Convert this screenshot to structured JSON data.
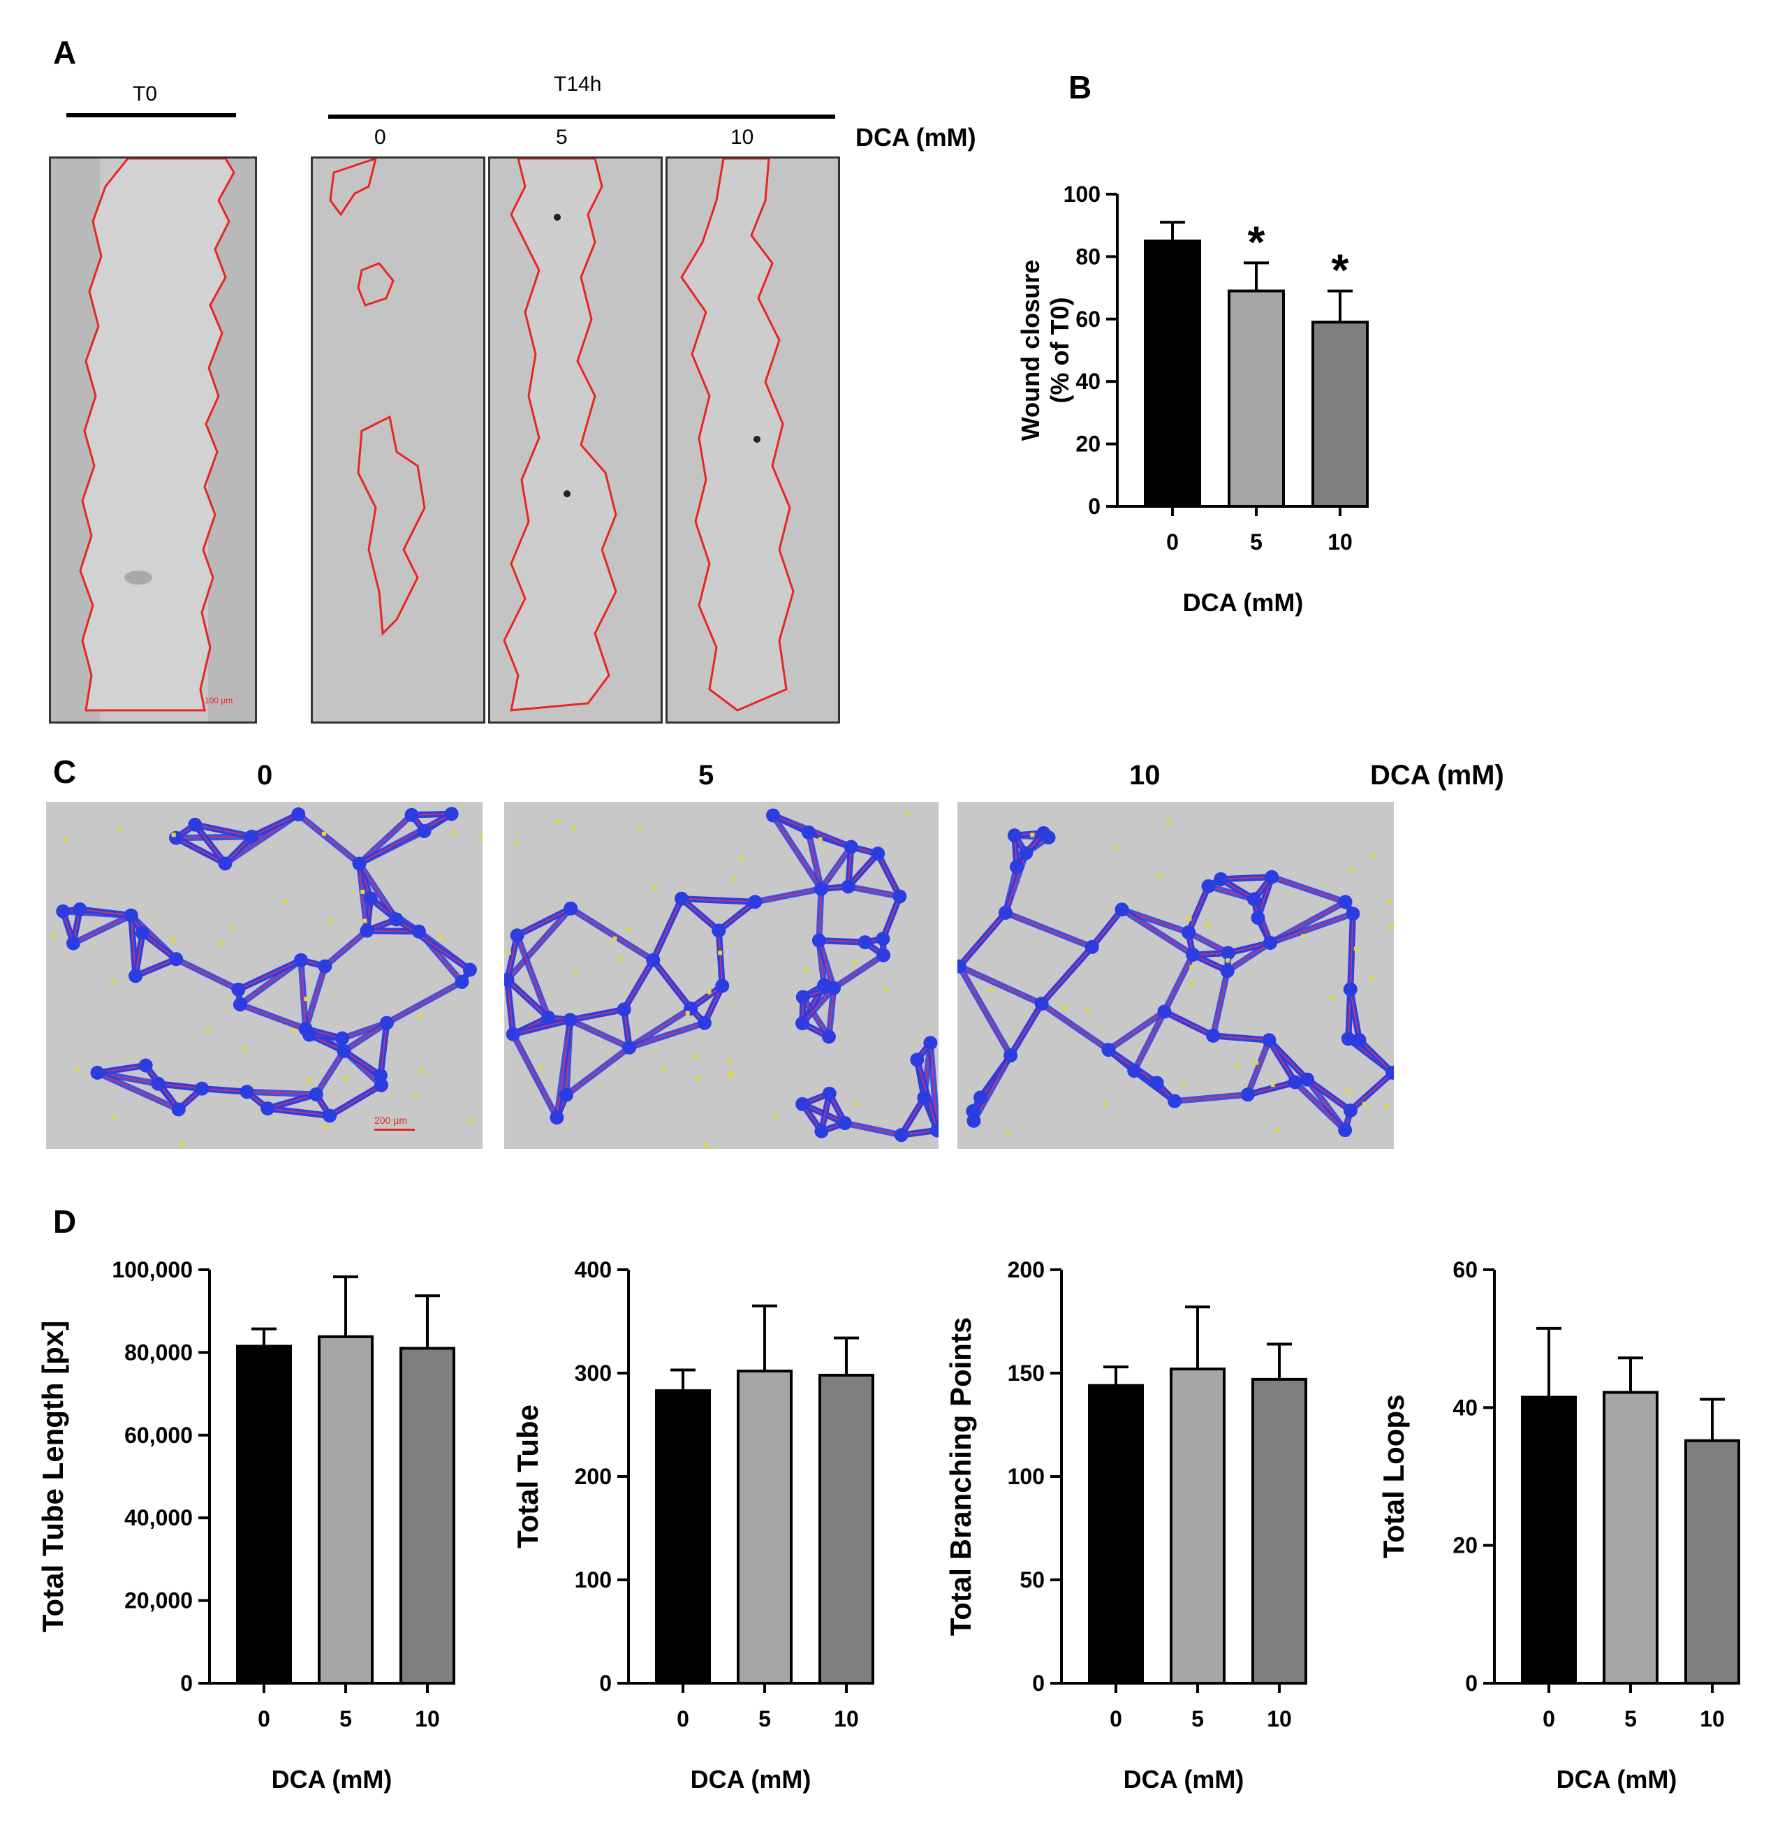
{
  "panels": {
    "a": "A",
    "b": "B",
    "c": "C",
    "d": "D"
  },
  "panel_a": {
    "t0_label": "T0",
    "t14_label": "T14h",
    "doses": [
      "0",
      "5",
      "10"
    ],
    "dca_label": "DCA (mM)",
    "scale_bar": "100 µm",
    "wound_outline_color": "#e8261e"
  },
  "panel_c": {
    "doses": [
      "0",
      "5",
      "10"
    ],
    "dca_label": "DCA (mM)",
    "scale_bar": "200 µm",
    "network_color": "#2b3de0",
    "node_color": "#e0d64a"
  },
  "chart_data": [
    {
      "id": "B",
      "type": "bar",
      "categories": [
        "0",
        "5",
        "10"
      ],
      "values": [
        85,
        69,
        59
      ],
      "errors": [
        6,
        9,
        10
      ],
      "significance": [
        "",
        "*",
        "*"
      ],
      "colors": [
        "#000000",
        "#a6a6a6",
        "#7f7f7f"
      ],
      "xlabel": "DCA (mM)",
      "ylabel": [
        "Wound closure",
        "(% of T0)"
      ],
      "ylim": [
        0,
        100
      ],
      "yticks": [
        0,
        20,
        40,
        60,
        80,
        100
      ],
      "ytick_labels": [
        "0",
        "20",
        "40",
        "60",
        "80",
        "100"
      ]
    },
    {
      "id": "D1",
      "type": "bar",
      "categories": [
        "0",
        "5",
        "10"
      ],
      "values": [
        81500,
        83800,
        81000
      ],
      "errors": [
        4200,
        14500,
        12700
      ],
      "colors": [
        "#000000",
        "#a6a6a6",
        "#7f7f7f"
      ],
      "xlabel": "DCA (mM)",
      "ylabel": [
        "Total Tube Length [px]"
      ],
      "ylim": [
        0,
        100000
      ],
      "yticks": [
        0,
        20000,
        40000,
        60000,
        80000,
        100000
      ],
      "ytick_labels": [
        "0",
        "20,000",
        "40,000",
        "60,000",
        "80,000",
        "100,000"
      ]
    },
    {
      "id": "D2",
      "type": "bar",
      "categories": [
        "0",
        "5",
        "10"
      ],
      "values": [
        283,
        302,
        298
      ],
      "errors": [
        20,
        63,
        36
      ],
      "colors": [
        "#000000",
        "#a6a6a6",
        "#7f7f7f"
      ],
      "xlabel": "DCA (mM)",
      "ylabel": [
        "Total Tube"
      ],
      "ylim": [
        0,
        400
      ],
      "yticks": [
        0,
        100,
        200,
        300,
        400
      ],
      "ytick_labels": [
        "0",
        "100",
        "200",
        "300",
        "400"
      ]
    },
    {
      "id": "D3",
      "type": "bar",
      "categories": [
        "0",
        "5",
        "10"
      ],
      "values": [
        144,
        152,
        147
      ],
      "errors": [
        9,
        30,
        17
      ],
      "colors": [
        "#000000",
        "#a6a6a6",
        "#7f7f7f"
      ],
      "xlabel": "DCA (mM)",
      "ylabel": [
        "Total Branching Points"
      ],
      "ylim": [
        0,
        200
      ],
      "yticks": [
        0,
        50,
        100,
        150,
        200
      ],
      "ytick_labels": [
        "0",
        "50",
        "100",
        "150",
        "200"
      ]
    },
    {
      "id": "D4",
      "type": "bar",
      "categories": [
        "0",
        "5",
        "10"
      ],
      "values": [
        41.5,
        42.2,
        35.2
      ],
      "errors": [
        10,
        5,
        6
      ],
      "colors": [
        "#000000",
        "#a6a6a6",
        "#7f7f7f"
      ],
      "xlabel": "DCA (mM)",
      "ylabel": [
        "Total Loops"
      ],
      "ylim": [
        0,
        60
      ],
      "yticks": [
        0,
        20,
        40,
        60
      ],
      "ytick_labels": [
        "0",
        "20",
        "40",
        "60"
      ]
    }
  ]
}
